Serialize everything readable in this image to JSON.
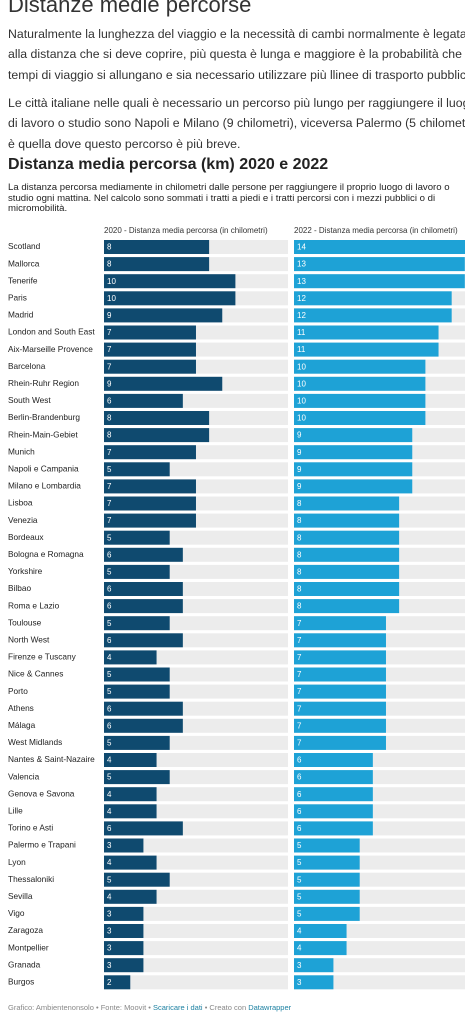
{
  "article": {
    "title": "Distanze medie percorse",
    "paragraphs": [
      "Naturalmente la lunghezza del viaggio e la necessità di cambi normalmente è legata alla distanza che si deve coprire, più questa è lunga e maggiore è la probabilità che i tempi di viaggio si allungano e sia necessario utilizzare più llinee di trasporto pubblico.",
      "Le città italiane nelle quali è necessario un percorso più lungo per raggiungere il luogo di lavoro o studio sono Napoli e Milano (9 chilometri), viceversa Palermo (5 chilometri) è quella dove questo percorso è più breve."
    ]
  },
  "chart_data": {
    "type": "bar",
    "title": "Distanza media percorsa (km) 2020 e 2022",
    "subtitle": "La distanza percorsa mediamente in chilometri dalle persone per raggiungere il proprio luogo di lavoro o studio ogni mattina. Nel calcolo sono sommati i tratti a piedi e i tratti percorsi con i mezzi pubblici o di micromobilità.",
    "categories": [
      "Scotland",
      "Mallorca",
      "Tenerife",
      "Paris",
      "Madrid",
      "London and South East",
      "Aix-Marseille Provence",
      "Barcelona",
      "Rhein-Ruhr Region",
      "South West",
      "Berlin-Brandenburg",
      "Rhein-Main-Gebiet",
      "Munich",
      "Napoli e Campania",
      "Milano e Lombardia",
      "Lisboa",
      "Venezia",
      "Bordeaux",
      "Bologna e Romagna",
      "Yorkshire",
      "Bilbao",
      "Roma e Lazio",
      "Toulouse",
      "North West",
      "Firenze e Tuscany",
      "Nice & Cannes",
      "Porto",
      "Athens",
      "Málaga",
      "West Midlands",
      "Nantes & Saint-Nazaire",
      "Valencia",
      "Genova e Savona",
      "Lille",
      "Torino e Asti",
      "Palermo e Trapani",
      "Lyon",
      "Thessaloniki",
      "Sevilla",
      "Vigo",
      "Zaragoza",
      "Montpellier",
      "Granada",
      "Burgos"
    ],
    "series": [
      {
        "name": "2020 - Distanza media percorsa (in chilometri)",
        "color": "#0f4a6f",
        "values": [
          8,
          8,
          10,
          10,
          9,
          7,
          7,
          7,
          9,
          6,
          8,
          8,
          7,
          5,
          7,
          7,
          7,
          5,
          6,
          5,
          6,
          6,
          5,
          6,
          4,
          5,
          5,
          6,
          6,
          5,
          4,
          5,
          4,
          4,
          6,
          3,
          4,
          5,
          4,
          3,
          3,
          3,
          3,
          2
        ]
      },
      {
        "name": "2022 - Distanza media percorsa (in chilometri)",
        "color": "#1ea2d6",
        "values": [
          14,
          13,
          13,
          12,
          12,
          11,
          11,
          10,
          10,
          10,
          10,
          9,
          9,
          9,
          9,
          8,
          8,
          8,
          8,
          8,
          8,
          8,
          7,
          7,
          7,
          7,
          7,
          7,
          7,
          7,
          6,
          6,
          6,
          6,
          6,
          5,
          5,
          5,
          5,
          5,
          4,
          4,
          3,
          3
        ]
      }
    ],
    "xlim": [
      0,
      14
    ],
    "footer": {
      "separator": "•",
      "credit": "Grafico: Ambientenonsolo",
      "source": "Fonte: Moovit",
      "download": "Scaricare i dati",
      "made": "Creato con",
      "tool": "Datawrapper"
    }
  }
}
